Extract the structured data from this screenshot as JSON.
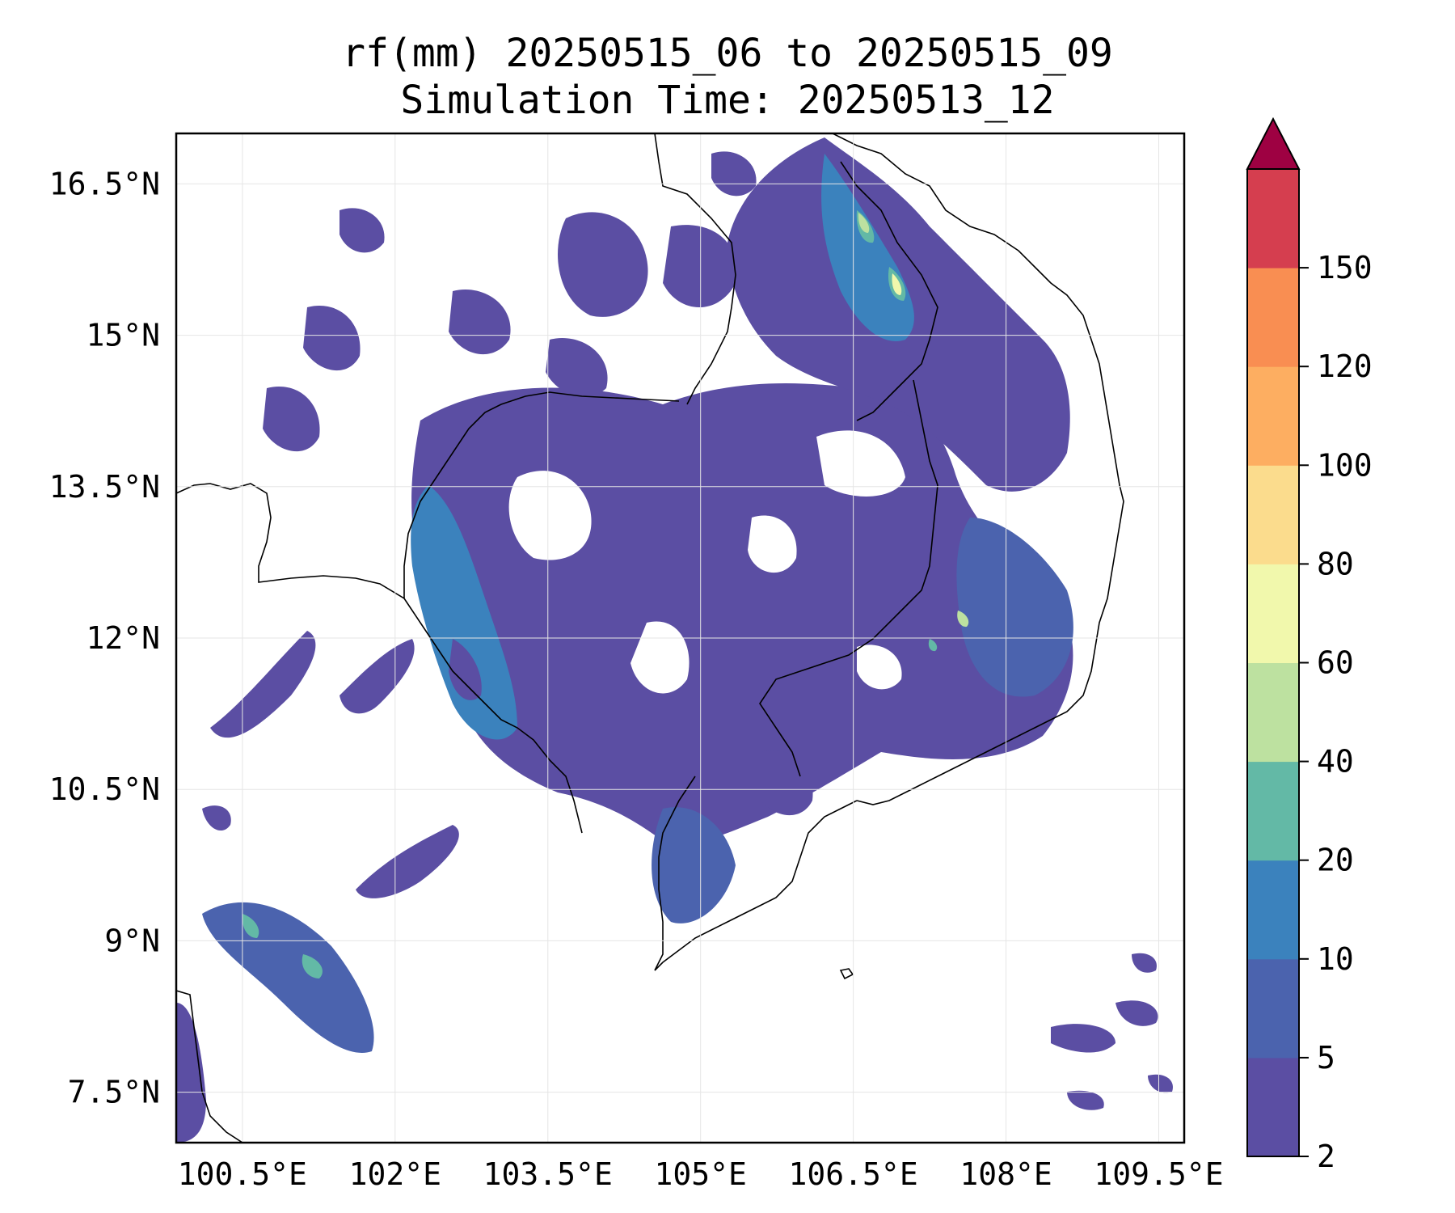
{
  "title": {
    "line1": "rf(mm) 20250515_06 to 20250515_09",
    "line2": "Simulation Time: 20250513_12"
  },
  "map": {
    "lon_range": [
      99.85,
      109.75
    ],
    "lat_range": [
      7.0,
      17.0
    ],
    "x_ticks": [
      {
        "value": 100.5,
        "label": "100.5°E"
      },
      {
        "value": 102.0,
        "label": "102°E"
      },
      {
        "value": 103.5,
        "label": "103.5°E"
      },
      {
        "value": 105.0,
        "label": "105°E"
      },
      {
        "value": 106.5,
        "label": "106.5°E"
      },
      {
        "value": 108.0,
        "label": "108°E"
      },
      {
        "value": 109.5,
        "label": "109.5°E"
      }
    ],
    "y_ticks": [
      {
        "value": 16.5,
        "label": "16.5°N"
      },
      {
        "value": 15.0,
        "label": "15°N"
      },
      {
        "value": 13.5,
        "label": "13.5°N"
      },
      {
        "value": 12.0,
        "label": "12°N"
      },
      {
        "value": 10.5,
        "label": "10.5°N"
      },
      {
        "value": 9.0,
        "label": "9°N"
      },
      {
        "value": 7.5,
        "label": "7.5°N"
      }
    ],
    "gridlines": true,
    "colors": {
      "level_2_5": "#5b4ea3",
      "level_5_10": "#4b63ae",
      "level_10_20": "#3b82bd",
      "level_20_40": "#63b9a6",
      "level_40_60": "#bde1a0",
      "level_60_80": "#f1f8ac",
      "level_80_100": "#fbdc8d",
      "level_100_120": "#fdae61",
      "level_120_150": "#f98e52",
      "level_150_plus": "#d53e4f",
      "over": "#9e0142",
      "coastline": "#000000"
    }
  },
  "colorbar": {
    "orientation": "right",
    "extend": "max",
    "levels": [
      2,
      5,
      10,
      20,
      40,
      60,
      80,
      100,
      120,
      150
    ],
    "labels": [
      "2",
      "5",
      "10",
      "20",
      "40",
      "60",
      "80",
      "100",
      "120",
      "150"
    ],
    "colors": [
      "#5b4ea3",
      "#4b63ae",
      "#3b82bd",
      "#63b9a6",
      "#bde1a0",
      "#f1f8ac",
      "#fbdc8d",
      "#fdae61",
      "#f98e52",
      "#d53e4f"
    ],
    "over_color": "#9e0142"
  }
}
